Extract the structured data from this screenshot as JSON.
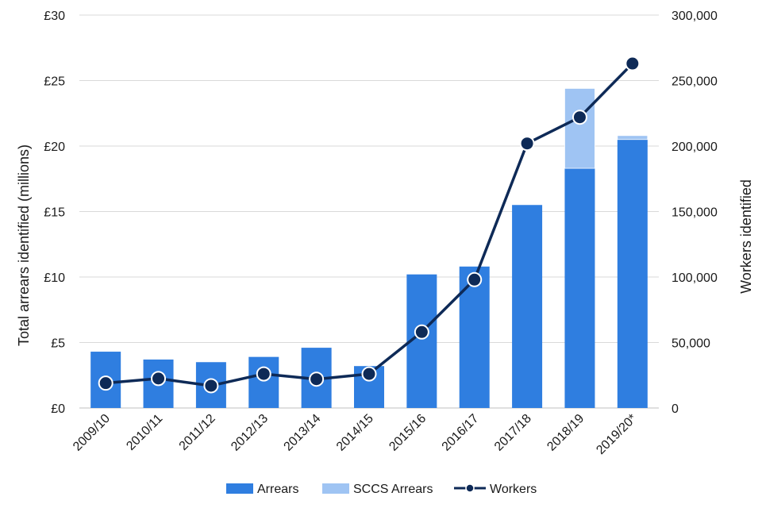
{
  "chart_data": {
    "type": "bar",
    "title": "",
    "categories": [
      "2009/10",
      "2010/11",
      "2011/12",
      "2012/13",
      "2013/14",
      "2014/15",
      "2015/16",
      "2016/17",
      "2017/18",
      "2018/19",
      "2019/20*"
    ],
    "series": [
      {
        "name": "Arrears",
        "kind": "bar",
        "axis": "left",
        "color": "#2f7ee0",
        "values": [
          4.3,
          3.7,
          3.5,
          3.9,
          4.6,
          3.2,
          10.2,
          10.8,
          15.5,
          18.3,
          20.5
        ]
      },
      {
        "name": "SCCS Arrears",
        "kind": "bar",
        "axis": "left",
        "color": "#9fc4f3",
        "values": [
          0,
          0,
          0,
          0,
          0,
          0,
          0,
          0,
          0,
          6.1,
          0.3
        ]
      },
      {
        "name": "Workers",
        "kind": "line",
        "axis": "right",
        "color": "#0e2a57",
        "values": [
          19000,
          22500,
          17000,
          26000,
          22000,
          26000,
          58000,
          98000,
          202000,
          222000,
          263000
        ]
      }
    ],
    "ylabel_left": "Total arrears identified (millions)",
    "ylabel_right": "Workers identified",
    "ylim_left": [
      0,
      30
    ],
    "ylim_right": [
      0,
      300000
    ],
    "yticks_left": [
      "£0",
      "£5",
      "£10",
      "£15",
      "£20",
      "£25",
      "£30"
    ],
    "yticks_right": [
      "0",
      "50,000",
      "100,000",
      "150,000",
      "200,000",
      "250,000",
      "300,000"
    ],
    "grid": true,
    "legend_position": "bottom"
  }
}
